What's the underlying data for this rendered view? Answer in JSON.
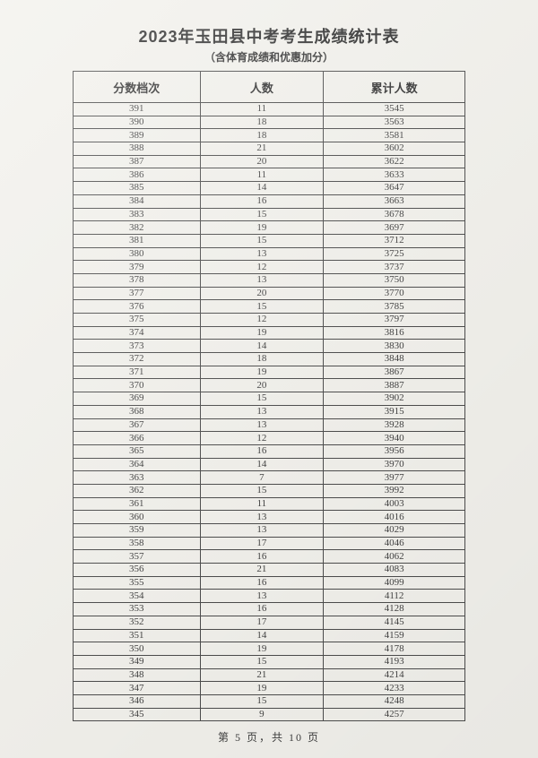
{
  "page": {
    "title": "2023年玉田县中考考生成绩统计表",
    "subtitle": "（含体育成绩和优惠加分）",
    "footer": "第 5 页，共 10 页"
  },
  "colors": {
    "page_bg": "#f2f1ec",
    "border": "#4d4d4d",
    "text": "#3c3c3c"
  },
  "table": {
    "headers": [
      "分数档次",
      "人数",
      "累计人数"
    ],
    "rows": [
      [
        391,
        11,
        3545
      ],
      [
        390,
        18,
        3563
      ],
      [
        389,
        18,
        3581
      ],
      [
        388,
        21,
        3602
      ],
      [
        387,
        20,
        3622
      ],
      [
        386,
        11,
        3633
      ],
      [
        385,
        14,
        3647
      ],
      [
        384,
        16,
        3663
      ],
      [
        383,
        15,
        3678
      ],
      [
        382,
        19,
        3697
      ],
      [
        381,
        15,
        3712
      ],
      [
        380,
        13,
        3725
      ],
      [
        379,
        12,
        3737
      ],
      [
        378,
        13,
        3750
      ],
      [
        377,
        20,
        3770
      ],
      [
        376,
        15,
        3785
      ],
      [
        375,
        12,
        3797
      ],
      [
        374,
        19,
        3816
      ],
      [
        373,
        14,
        3830
      ],
      [
        372,
        18,
        3848
      ],
      [
        371,
        19,
        3867
      ],
      [
        370,
        20,
        3887
      ],
      [
        369,
        15,
        3902
      ],
      [
        368,
        13,
        3915
      ],
      [
        367,
        13,
        3928
      ],
      [
        366,
        12,
        3940
      ],
      [
        365,
        16,
        3956
      ],
      [
        364,
        14,
        3970
      ],
      [
        363,
        7,
        3977
      ],
      [
        362,
        15,
        3992
      ],
      [
        361,
        11,
        4003
      ],
      [
        360,
        13,
        4016
      ],
      [
        359,
        13,
        4029
      ],
      [
        358,
        17,
        4046
      ],
      [
        357,
        16,
        4062
      ],
      [
        356,
        21,
        4083
      ],
      [
        355,
        16,
        4099
      ],
      [
        354,
        13,
        4112
      ],
      [
        353,
        16,
        4128
      ],
      [
        352,
        17,
        4145
      ],
      [
        351,
        14,
        4159
      ],
      [
        350,
        19,
        4178
      ],
      [
        349,
        15,
        4193
      ],
      [
        348,
        21,
        4214
      ],
      [
        347,
        19,
        4233
      ],
      [
        346,
        15,
        4248
      ],
      [
        345,
        9,
        4257
      ]
    ]
  }
}
